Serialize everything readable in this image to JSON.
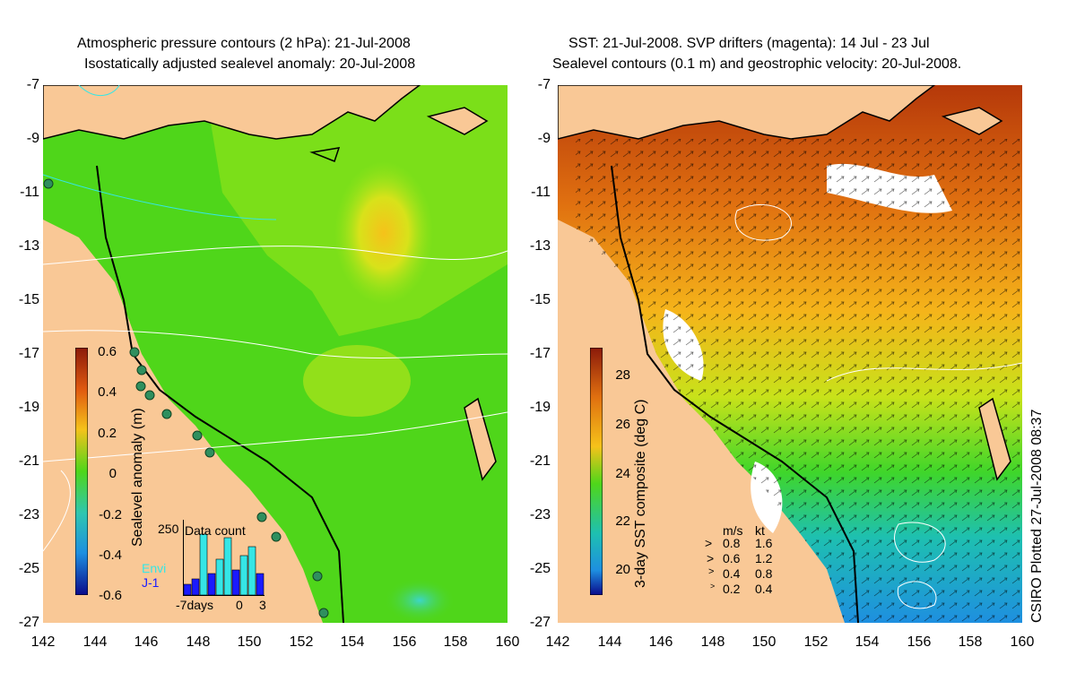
{
  "left_panel": {
    "title_line1": "Atmospheric pressure contours (2 hPa): 21-Jul-2008",
    "title_line2": "Isostatically adjusted sealevel anomaly: 20-Jul-2008",
    "colorbar_label": "Sealevel anomaly (m)",
    "colorbar_ticks": [
      "0.6",
      "0.4",
      "0.2",
      "0",
      "-0.2",
      "-0.4",
      "-0.6"
    ],
    "inset": {
      "title": "Data count",
      "y_tick": "250",
      "x_ticks": [
        "-7days",
        "0",
        "3"
      ],
      "legend": [
        {
          "label": "Envi",
          "color": "#35e6e6"
        },
        {
          "label": "J-1",
          "color": "#1a1aff"
        }
      ]
    }
  },
  "right_panel": {
    "title_line1": "SST: 21-Jul-2008. SVP drifters (magenta): 14 Jul - 23 Jul",
    "title_line2": "Sealevel contours (0.1 m) and geostrophic velocity: 20-Jul-2008.",
    "colorbar_label": "3-day SST composite (deg C)",
    "colorbar_ticks": [
      "28",
      "26",
      "24",
      "22",
      "20"
    ],
    "velocity_legend": {
      "header_ms": "m/s",
      "header_kt": "kt",
      "rows": [
        {
          "ms": "0.8",
          "kt": "1.6"
        },
        {
          "ms": "0.6",
          "kt": "1.2"
        },
        {
          "ms": "0.4",
          "kt": "0.8"
        },
        {
          "ms": "0.2",
          "kt": "0.4"
        }
      ]
    }
  },
  "axes": {
    "y_ticks": [
      "-7",
      "-9",
      "-11",
      "-13",
      "-15",
      "-17",
      "-19",
      "-21",
      "-23",
      "-25",
      "-27"
    ],
    "x_ticks": [
      "142",
      "144",
      "146",
      "148",
      "150",
      "152",
      "154",
      "156",
      "158",
      "160"
    ]
  },
  "credit": "CSIRO Plotted 27-Jul-2008 08:37",
  "colors": {
    "land": "#f9c896",
    "ocean_green": "#4fd61a",
    "sst_warm": "#e07010",
    "sst_cool": "#1e8fe0"
  }
}
